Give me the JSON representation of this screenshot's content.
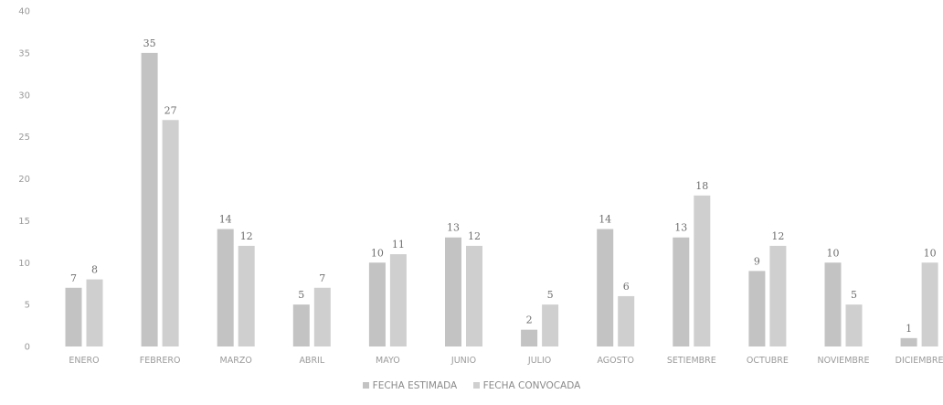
{
  "chart_data": {
    "type": "bar",
    "categories": [
      "ENERO",
      "FEBRERO",
      "MARZO",
      "ABRIL",
      "MAYO",
      "JUNIO",
      "JULIO",
      "AGOSTO",
      "SETIEMBRE",
      "OCTUBRE",
      "NOVIEMBRE",
      "DICIEMBRE"
    ],
    "series": [
      {
        "name": "FECHA ESTIMADA",
        "values": [
          7,
          35,
          14,
          5,
          10,
          13,
          2,
          14,
          13,
          9,
          10,
          1
        ],
        "color": "#c3c3c3"
      },
      {
        "name": "FECHA CONVOCADA",
        "values": [
          8,
          27,
          12,
          7,
          11,
          12,
          5,
          6,
          18,
          12,
          5,
          10
        ],
        "color": "#cfcfcf"
      }
    ],
    "ylim": [
      0,
      40
    ],
    "yticks": [
      0,
      5,
      10,
      15,
      20,
      25,
      30,
      35,
      40
    ],
    "grid": false,
    "legend_position": "bottom",
    "title": "",
    "xlabel": "",
    "ylabel": ""
  }
}
